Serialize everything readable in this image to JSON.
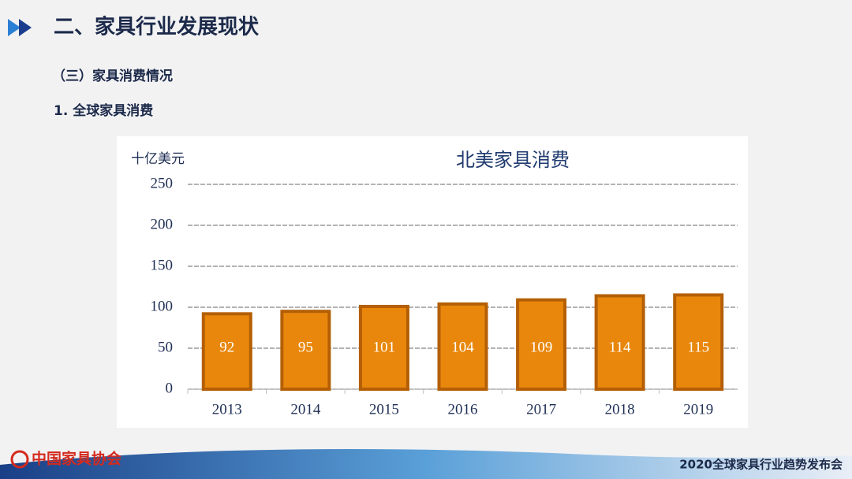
{
  "header": {
    "title": "二、家具行业发展现状",
    "section": "（三）家具消费情况",
    "subsection": "1. 全球家具消费"
  },
  "chart_data": {
    "type": "bar",
    "title": "北美家具消费",
    "y_label": "十亿美元",
    "categories": [
      "2013",
      "2014",
      "2015",
      "2016",
      "2017",
      "2018",
      "2019"
    ],
    "values": [
      92,
      95,
      101,
      104,
      109,
      114,
      115
    ],
    "color": "#e8870c",
    "ylim": [
      0,
      250
    ],
    "yticks": [
      0,
      50,
      100,
      150,
      200,
      250
    ],
    "grid": true
  },
  "footer": {
    "logo": "中国家具协会",
    "event": "2020全球家具行业趋势发布会"
  }
}
